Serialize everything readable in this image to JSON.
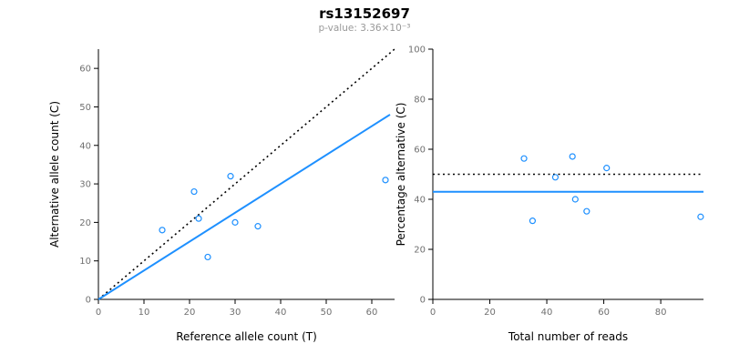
{
  "header": {
    "title": "rs13152697",
    "subtitle": "p-value: 3.36×10⁻³"
  },
  "colors": {
    "accent_blue": "#1e90ff",
    "identity_line": "#000000",
    "tick_label": "#707070",
    "subtitle_gray": "#999999"
  },
  "chart_data": [
    {
      "name": "allele-counts",
      "type": "scatter",
      "title": "",
      "xlabel": "Reference allele count (T)",
      "ylabel": "Alternative allele count (C)",
      "xlim": [
        0,
        65
      ],
      "ylim": [
        0,
        65
      ],
      "xticks": [
        0,
        10,
        20,
        30,
        40,
        50,
        60
      ],
      "yticks": [
        0,
        10,
        20,
        30,
        40,
        50,
        60
      ],
      "grid": false,
      "legend": false,
      "point_color": "#1e90ff",
      "points": [
        [
          14,
          18
        ],
        [
          21,
          28
        ],
        [
          22,
          21
        ],
        [
          24,
          11
        ],
        [
          29,
          32
        ],
        [
          30,
          20
        ],
        [
          35,
          19
        ],
        [
          63,
          31
        ]
      ],
      "lines": [
        {
          "name": "identity",
          "style": "dotted",
          "color": "#000000",
          "width": 1.6,
          "from": [
            0,
            0
          ],
          "to": [
            65,
            65
          ]
        },
        {
          "name": "regression",
          "style": "solid",
          "color": "#1e90ff",
          "width": 2,
          "from": [
            0,
            0
          ],
          "to": [
            64,
            48
          ]
        }
      ]
    },
    {
      "name": "percentage-alternative",
      "type": "scatter",
      "title": "",
      "xlabel": "Total number of reads",
      "ylabel": "Percentage alternative (C)",
      "xlim": [
        0,
        95
      ],
      "ylim": [
        0,
        100
      ],
      "xticks": [
        0,
        20,
        40,
        60,
        80
      ],
      "yticks": [
        0,
        20,
        40,
        60,
        80,
        100
      ],
      "grid": false,
      "legend": false,
      "point_color": "#1e90ff",
      "points": [
        [
          32,
          56.3
        ],
        [
          35,
          31.4
        ],
        [
          43,
          48.8
        ],
        [
          49,
          57.1
        ],
        [
          50,
          40
        ],
        [
          54,
          35.2
        ],
        [
          61,
          52.5
        ],
        [
          94,
          33
        ]
      ],
      "lines": [
        {
          "name": "expected-50pct",
          "style": "dotted",
          "color": "#000000",
          "width": 1.6,
          "from": [
            0,
            50
          ],
          "to": [
            95,
            50
          ]
        },
        {
          "name": "mean-percentage",
          "style": "solid",
          "color": "#1e90ff",
          "width": 2,
          "from": [
            0,
            43
          ],
          "to": [
            95,
            43
          ]
        }
      ]
    }
  ]
}
